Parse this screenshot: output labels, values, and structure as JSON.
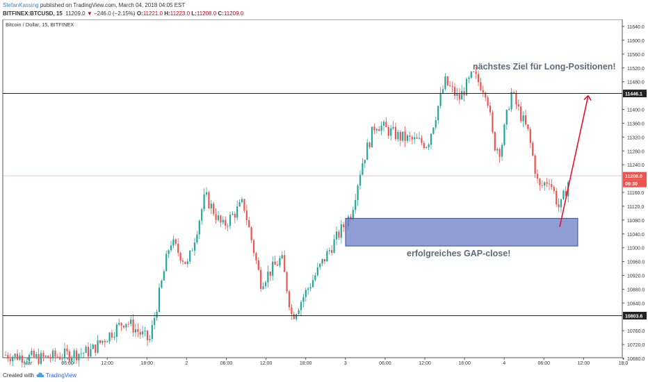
{
  "header": {
    "author": "StefanKassing",
    "published_text": "published on TradingView.com, March 04, 2018 04:05 EST",
    "symbol_interval": "BITFINEX:BTCUSD, 15",
    "last_price": "11209.0",
    "change_arrow": "▼",
    "change_text": "−246.0 (−2.15%)",
    "o_label": "O:",
    "o_value": "11221.0",
    "h_label": "H:",
    "h_value": "11223.0",
    "l_label": "L:",
    "l_value": "11208.0",
    "c_label": "C:",
    "c_value": "11209.0"
  },
  "chart": {
    "title": "Bitcoin / Dollar, 15, BITFINEX",
    "annotation_target": "nächstes Ziel für Long-Positionen!",
    "annotation_gap": "erfolgreiches GAP-close!",
    "price_ticks": [
      "11640.0",
      "11600.0",
      "11560.0",
      "11520.0",
      "11480.0",
      "11400.0",
      "11360.0",
      "11320.0",
      "11280.0",
      "11240.0",
      "11160.0",
      "11120.0",
      "11080.0",
      "11040.0",
      "11000.0",
      "10960.0",
      "10920.0",
      "10880.0",
      "10840.0",
      "10760.0",
      "10720.0",
      "10680.0"
    ],
    "time_ticks": [
      "Mar",
      "06:00",
      "12:00",
      "18:00",
      "2",
      "06:00",
      "12:00",
      "18:00",
      "3",
      "06:00",
      "12:00",
      "18:00",
      "4",
      "06:00",
      "12:00",
      "18:0"
    ],
    "resistance_label": "11446.1",
    "support_label": "10803.6",
    "current_label": "11208.0",
    "countdown_label": "09:30",
    "gap_zone": {
      "top": 11085,
      "bottom": 11005
    },
    "colors": {
      "up": "#26a69a",
      "down": "#ef5350",
      "zone": "#6b7fc4",
      "arrow": "#e8102e",
      "current": "#ef5350"
    }
  },
  "footer": {
    "created_with": "Created with",
    "brand": "TradingView"
  }
}
